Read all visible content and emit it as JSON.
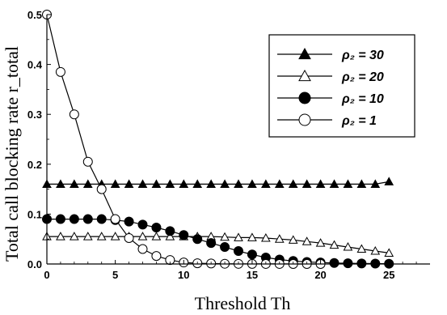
{
  "chart_data": {
    "type": "line",
    "xlabel": "Threshold  Th",
    "ylabel": "Total call blocking rate  r_total",
    "xlim": [
      0,
      28
    ],
    "ylim": [
      0,
      0.5
    ],
    "xticks": [
      0,
      5,
      10,
      15,
      20,
      25
    ],
    "yticks": [
      0.0,
      0.1,
      0.2,
      0.3,
      0.4,
      0.5
    ],
    "xtick_labels": [
      "0",
      "5",
      "10",
      "15",
      "20",
      "25"
    ],
    "ytick_labels": [
      "0.0",
      "0.1",
      "0.2",
      "0.3",
      "0.4",
      "0.5"
    ],
    "legend_position": "top-right",
    "grid": false,
    "series": [
      {
        "name": "ρ₂ = 30",
        "marker": "filled-triangle",
        "x": [
          0,
          1,
          2,
          3,
          4,
          5,
          6,
          7,
          8,
          9,
          10,
          11,
          12,
          13,
          14,
          15,
          16,
          17,
          18,
          19,
          20,
          21,
          22,
          23,
          24,
          25
        ],
        "values": [
          0.16,
          0.16,
          0.16,
          0.16,
          0.16,
          0.16,
          0.16,
          0.16,
          0.16,
          0.16,
          0.16,
          0.16,
          0.16,
          0.16,
          0.16,
          0.16,
          0.16,
          0.16,
          0.16,
          0.16,
          0.16,
          0.16,
          0.16,
          0.16,
          0.16,
          0.165
        ]
      },
      {
        "name": "ρ₂ = 20",
        "marker": "open-triangle",
        "x": [
          0,
          1,
          2,
          3,
          4,
          5,
          6,
          7,
          8,
          9,
          10,
          11,
          12,
          13,
          14,
          15,
          16,
          17,
          18,
          19,
          20,
          21,
          22,
          23,
          24,
          25
        ],
        "values": [
          0.055,
          0.055,
          0.055,
          0.055,
          0.055,
          0.055,
          0.055,
          0.055,
          0.055,
          0.055,
          0.055,
          0.055,
          0.055,
          0.054,
          0.053,
          0.053,
          0.052,
          0.05,
          0.048,
          0.045,
          0.042,
          0.038,
          0.034,
          0.03,
          0.026,
          0.022
        ]
      },
      {
        "name": "ρ₂ = 10",
        "marker": "filled-circle",
        "x": [
          0,
          1,
          2,
          3,
          4,
          5,
          6,
          7,
          8,
          9,
          10,
          11,
          12,
          13,
          14,
          15,
          16,
          17,
          18,
          19,
          20,
          21,
          22,
          23,
          24,
          25
        ],
        "values": [
          0.09,
          0.09,
          0.09,
          0.09,
          0.09,
          0.088,
          0.085,
          0.079,
          0.073,
          0.066,
          0.058,
          0.05,
          0.042,
          0.034,
          0.026,
          0.019,
          0.013,
          0.009,
          0.006,
          0.004,
          0.003,
          0.002,
          0.0015,
          0.001,
          0.0008,
          0.0005
        ]
      },
      {
        "name": "ρ₂ = 1",
        "marker": "open-circle",
        "x": [
          0,
          1,
          2,
          3,
          4,
          5,
          6,
          7,
          8,
          9,
          10,
          11,
          12,
          13,
          14,
          15,
          16,
          17,
          18,
          19,
          20
        ],
        "values": [
          0.5,
          0.385,
          0.3,
          0.205,
          0.15,
          0.09,
          0.052,
          0.03,
          0.016,
          0.008,
          0.003,
          0.0015,
          0.001,
          0.0005,
          0.0003,
          0.0002,
          0.0001,
          0.0001,
          0.0,
          0.0,
          0.0
        ]
      }
    ]
  }
}
